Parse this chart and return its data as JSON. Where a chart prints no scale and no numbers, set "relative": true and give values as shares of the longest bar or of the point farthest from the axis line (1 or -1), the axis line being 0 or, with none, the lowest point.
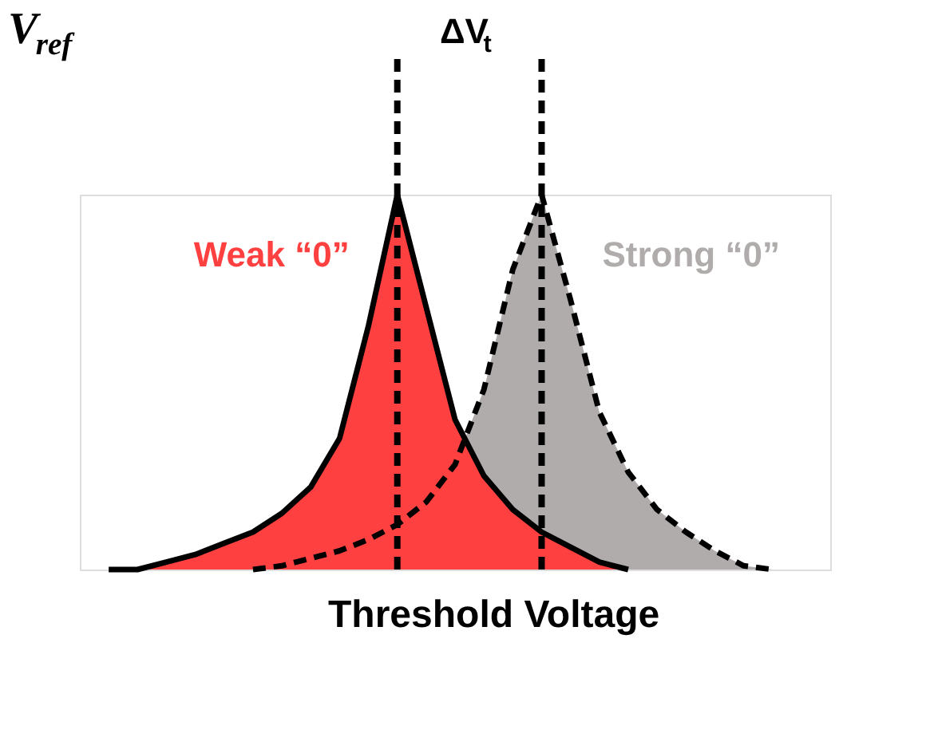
{
  "chart_data": {
    "type": "area",
    "relative": true,
    "xlabel": "Threshold Voltage",
    "ylabel": "V$_{ref}$",
    "annotations": [
      "ΔV$_{t}$"
    ],
    "categories": [
      null,
      null,
      null,
      null,
      null,
      null,
      null,
      null,
      null,
      null,
      null,
      null,
      null,
      null,
      null,
      null,
      null,
      null,
      null,
      null,
      null,
      null,
      null,
      null,
      null
    ],
    "series": [
      {
        "name": "Strong “0”",
        "color": "#b0acac",
        "line_style": "dashed",
        "values": [
          null,
          null,
          null,
          null,
          null,
          0,
          0.01,
          0.03,
          0.05,
          0.08,
          0.12,
          0.18,
          0.28,
          0.48,
          0.8,
          1.0,
          0.72,
          0.42,
          0.26,
          0.16,
          0.1,
          0.05,
          0.01,
          0,
          null
        ]
      },
      {
        "name": "Weak “0”",
        "color": "#ff4040",
        "line_style": "solid",
        "values": [
          0,
          0,
          0.02,
          0.04,
          0.07,
          0.1,
          0.15,
          0.22,
          0.35,
          0.65,
          1.0,
          0.7,
          0.4,
          0.25,
          0.16,
          0.1,
          0.06,
          0.02,
          0,
          null,
          null,
          null,
          null,
          null,
          null
        ]
      }
    ],
    "grid": false,
    "legend": false
  }
}
